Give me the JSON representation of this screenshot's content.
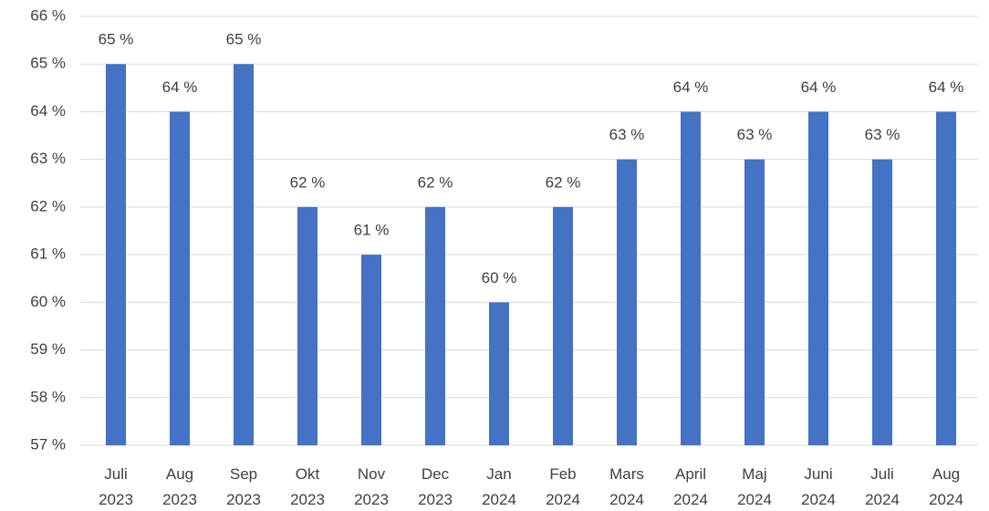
{
  "chart_data": {
    "type": "bar",
    "categories": [
      "Juli 2023",
      "Aug 2023",
      "Sep 2023",
      "Okt 2023",
      "Nov 2023",
      "Dec 2023",
      "Jan 2024",
      "Feb 2024",
      "Mars 2024",
      "April 2024",
      "Maj 2024",
      "Juni 2024",
      "Juli 2024",
      "Aug 2024"
    ],
    "values": [
      65,
      64,
      65,
      62,
      61,
      62,
      60,
      62,
      63,
      64,
      63,
      64,
      63,
      64
    ],
    "value_labels": [
      "65 %",
      "64 %",
      "65 %",
      "62 %",
      "61 %",
      "62 %",
      "60 %",
      "62 %",
      "63 %",
      "64 %",
      "63 %",
      "64 %",
      "63 %",
      "64 %"
    ],
    "color": "#4472c4",
    "ylim": [
      57,
      66
    ],
    "yticks": [
      {
        "value": 57,
        "label": "57 %"
      },
      {
        "value": 58,
        "label": "58 %"
      },
      {
        "value": 59,
        "label": "59 %"
      },
      {
        "value": 60,
        "label": "60 %"
      },
      {
        "value": 61,
        "label": "61 %"
      },
      {
        "value": 62,
        "label": "62 %"
      },
      {
        "value": 63,
        "label": "63 %"
      },
      {
        "value": 64,
        "label": "64 %"
      },
      {
        "value": 65,
        "label": "65 %"
      },
      {
        "value": 66,
        "label": "66 %"
      }
    ],
    "grid": true
  }
}
